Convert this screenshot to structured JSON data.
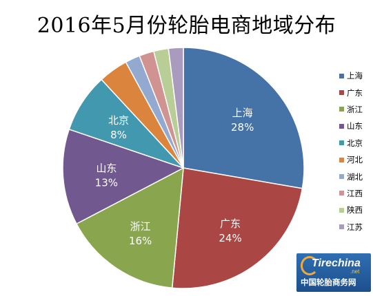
{
  "chart_data": {
    "type": "pie",
    "title": "2016年5月份轮胎电商地域分布",
    "categories": [
      "上海",
      "广东",
      "浙江",
      "山东",
      "北京",
      "河北",
      "湖北",
      "江西",
      "陕西",
      "江苏"
    ],
    "values": [
      28,
      24,
      16,
      13,
      8,
      4,
      2,
      2,
      2,
      2
    ],
    "value_labels": [
      "28%",
      "24%",
      "16%",
      "13%",
      "8%",
      "",
      "",
      "",
      "",
      ""
    ],
    "colors": [
      "#4572A7",
      "#AA4643",
      "#89A54E",
      "#71588F",
      "#4198AF",
      "#DB843D",
      "#93A9CF",
      "#D19392",
      "#B9CD96",
      "#A99BBD"
    ],
    "legend_position": "right"
  },
  "watermark": {
    "logo": "Tirechina",
    "domain": ".net",
    "name": "中国轮胎商务网"
  }
}
